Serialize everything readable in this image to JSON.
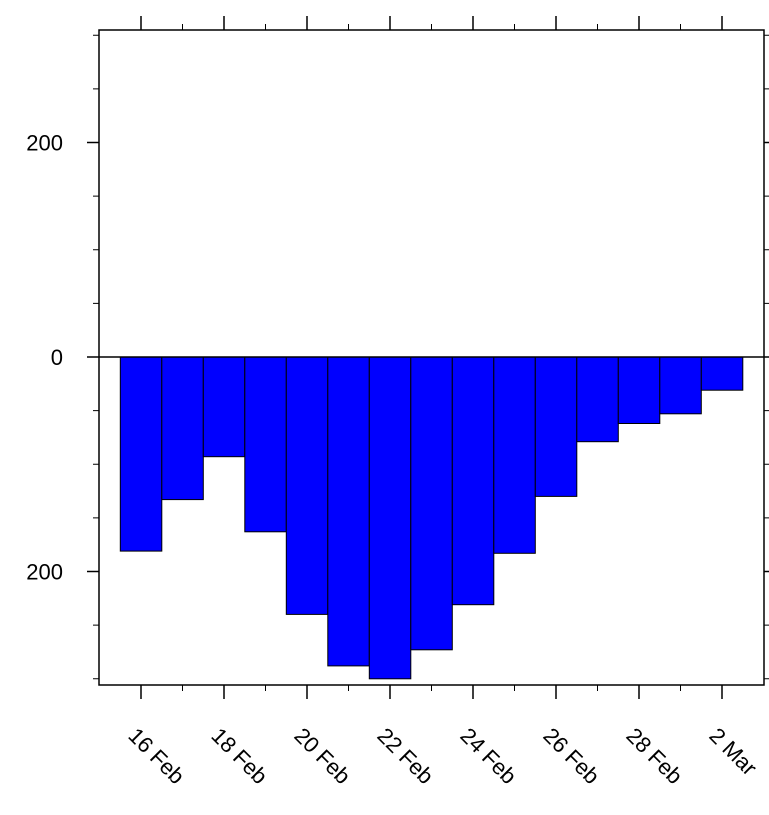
{
  "chart_data": {
    "type": "bar",
    "x": [
      "16 Feb",
      "17 Feb",
      "18 Feb",
      "19 Feb",
      "20 Feb",
      "21 Feb",
      "22 Feb",
      "23 Feb",
      "24 Feb",
      "25 Feb",
      "26 Feb",
      "27 Feb",
      "28 Feb",
      "1 Mar",
      "2 Mar"
    ],
    "values": [
      -181,
      -133,
      -93,
      -163,
      -240,
      -288,
      -300,
      -273,
      -231,
      -183,
      -130,
      -79,
      -62,
      -53,
      -31
    ],
    "ylim": [
      -305,
      305
    ],
    "yticks": [
      -200,
      0,
      200
    ],
    "ytick_labels": [
      "200",
      "0",
      "200"
    ],
    "xticks": [
      "16 Feb",
      "18 Feb",
      "20 Feb",
      "22 Feb",
      "24 Feb",
      "26 Feb",
      "28 Feb",
      "2 Mar"
    ],
    "bar_color": "#0000ff",
    "grid": false,
    "title": "",
    "xlabel": "",
    "ylabel": ""
  }
}
